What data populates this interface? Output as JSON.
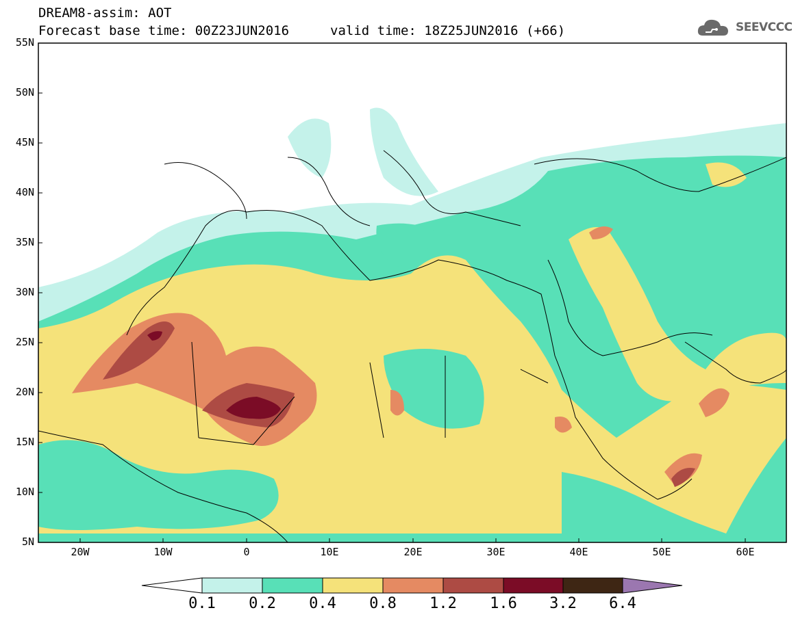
{
  "header": {
    "line1": "DREAM8-assim: AOT",
    "base_time": "Forecast base time: 00Z23JUN2016",
    "valid_time": "valid time: 18Z25JUN2016 (+66)"
  },
  "logo": {
    "text": "SEEVCCC",
    "icon": "cloud-icon"
  },
  "axes": {
    "y_labels": [
      "55N",
      "50N",
      "45N",
      "40N",
      "35N",
      "30N",
      "25N",
      "20N",
      "15N",
      "10N",
      "5N"
    ],
    "x_labels": [
      "20W",
      "10W",
      "0",
      "10E",
      "20E",
      "30E",
      "40E",
      "50E",
      "60E"
    ]
  },
  "colorbar": {
    "labels": [
      "0.1",
      "0.2",
      "0.4",
      "0.8",
      "1.2",
      "1.6",
      "3.2",
      "6.4"
    ],
    "colors": {
      "under": "#ffffff",
      "b1": "#c4f2ea",
      "b2": "#58e0b7",
      "b3": "#f5e27a",
      "b4": "#e58a62",
      "b5": "#ad4b44",
      "b6": "#7b0c26",
      "b7": "#3e2614",
      "over": "#9b77b0"
    }
  }
}
